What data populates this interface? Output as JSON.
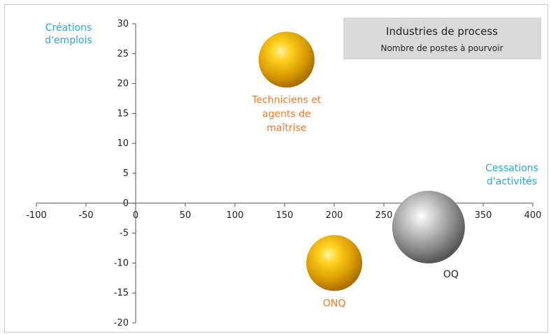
{
  "chart_data": {
    "type": "bubble",
    "title": "Industries de process",
    "subtitle": "Nombre de postes à pourvoir",
    "xlabel": "Cessations d'activités",
    "ylabel": "Créations d'emplois",
    "xlim": [
      -100,
      400
    ],
    "ylim": [
      -20,
      30
    ],
    "x_ticks": [
      "-100",
      "-50",
      "0",
      "50",
      "100",
      "150",
      "200",
      "250",
      "300",
      "350",
      "400"
    ],
    "y_ticks": [
      "30",
      "25",
      "20",
      "15",
      "10",
      "5",
      "0",
      "-5",
      "-10",
      "-15",
      "-20"
    ],
    "grid": false,
    "points": [
      {
        "label": "Techniciens et agents de maîtrise",
        "label_lines": [
          "Techniciens et",
          "agents de",
          "maîtrise"
        ],
        "x": 152,
        "y": 24,
        "size": 1.0,
        "color": "#e8b800",
        "label_color": "#f07a2a"
      },
      {
        "label": "ONQ",
        "label_lines": [
          "ONQ"
        ],
        "x": 200,
        "y": -10,
        "size": 1.0,
        "color": "#e8b800",
        "label_color": "#f07a2a"
      },
      {
        "label": "OQ",
        "label_lines": [
          "OQ"
        ],
        "x": 295,
        "y": -4,
        "size": 1.3,
        "color": "#9a9a9a",
        "label_color": "#222222"
      }
    ]
  }
}
